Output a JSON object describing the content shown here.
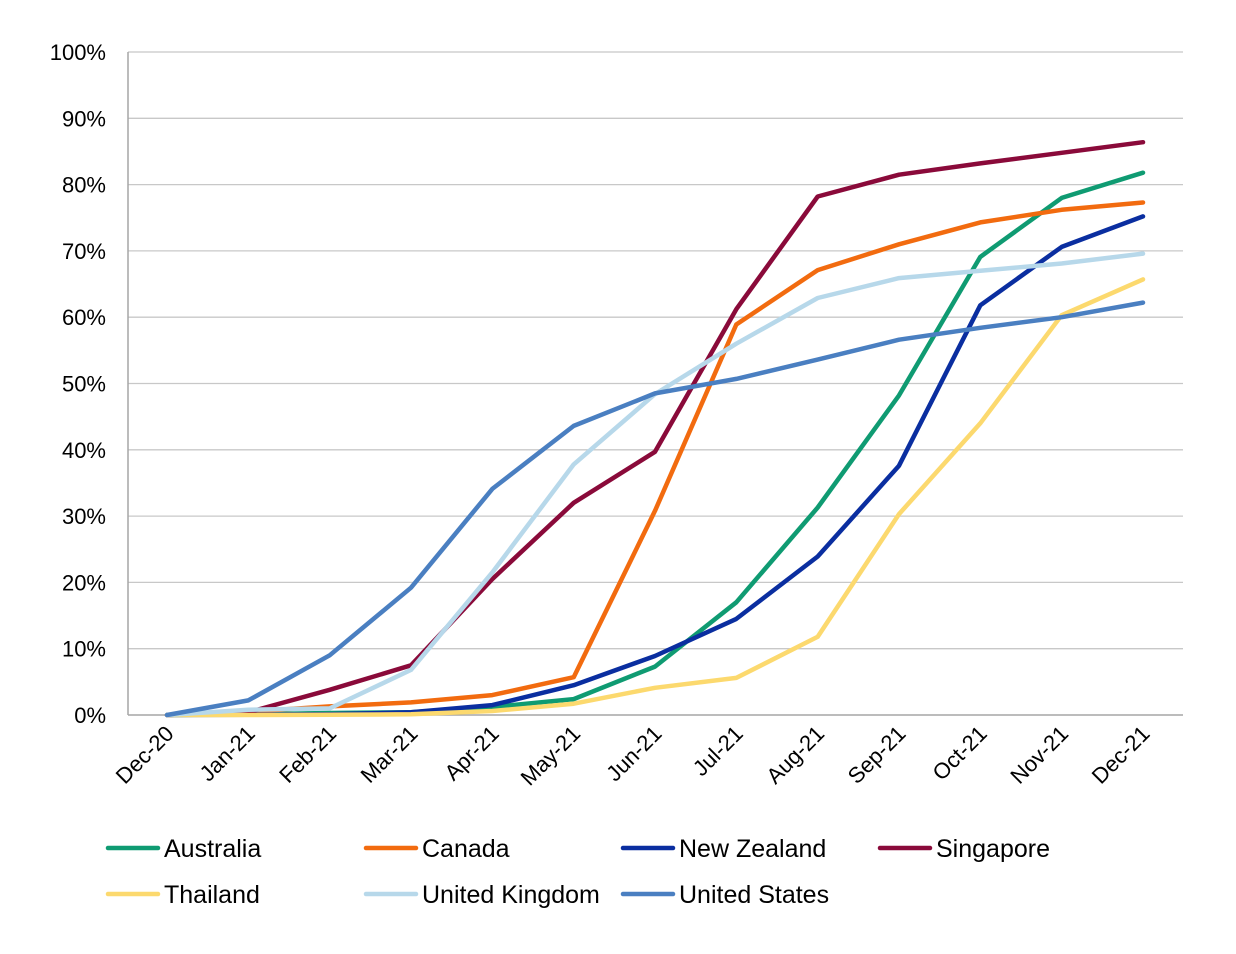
{
  "chart_data": {
    "type": "line",
    "title": "",
    "xlabel": "",
    "ylabel": "",
    "ylim": [
      0,
      100
    ],
    "y_ticks": [
      "0%",
      "10%",
      "20%",
      "30%",
      "40%",
      "50%",
      "60%",
      "70%",
      "80%",
      "90%",
      "100%"
    ],
    "grid": true,
    "legend_position": "bottom",
    "categories": [
      "Dec-20",
      "Jan-21",
      "Feb-21",
      "Mar-21",
      "Apr-21",
      "May-21",
      "Jun-21",
      "Jul-21",
      "Aug-21",
      "Sep-21",
      "Oct-21",
      "Nov-21",
      "Dec-21"
    ],
    "series": [
      {
        "name": "Australia",
        "color": "#0f9b72",
        "values": [
          0,
          0.1,
          0.3,
          0.4,
          1.2,
          2.4,
          7.3,
          17.0,
          31.3,
          48.2,
          69.1,
          78.0,
          81.8
        ]
      },
      {
        "name": "Canada",
        "color": "#f26b0f",
        "values": [
          0,
          0.5,
          1.3,
          1.9,
          3.0,
          5.7,
          30.8,
          58.9,
          67.1,
          71.0,
          74.3,
          76.2,
          77.3
        ]
      },
      {
        "name": "New Zealand",
        "color": "#0a2ea0",
        "values": [
          0,
          0.05,
          0.1,
          0.4,
          1.5,
          4.5,
          8.9,
          14.5,
          23.9,
          37.6,
          61.8,
          70.6,
          75.2
        ]
      },
      {
        "name": "Singapore",
        "color": "#8a0a3a",
        "values": [
          0,
          0.4,
          3.8,
          7.5,
          20.5,
          32.0,
          39.7,
          61.2,
          78.2,
          81.5,
          83.2,
          84.8,
          86.4
        ]
      },
      {
        "name": "Thailand",
        "color": "#fcd96e",
        "values": [
          0,
          0,
          0.05,
          0.1,
          0.6,
          1.7,
          4.1,
          5.6,
          11.8,
          30.3,
          44.0,
          60.3,
          65.7
        ]
      },
      {
        "name": "United Kingdom",
        "color": "#b7d8ea",
        "values": [
          0,
          0.8,
          1.0,
          6.8,
          21.5,
          37.8,
          48.4,
          56.0,
          62.9,
          65.9,
          67.0,
          68.1,
          69.6
        ]
      },
      {
        "name": "United States",
        "color": "#4a7fc1",
        "values": [
          0,
          2.2,
          9.0,
          19.2,
          34.1,
          43.6,
          48.5,
          50.7,
          53.6,
          56.6,
          58.4,
          60.0,
          62.2
        ]
      }
    ]
  }
}
